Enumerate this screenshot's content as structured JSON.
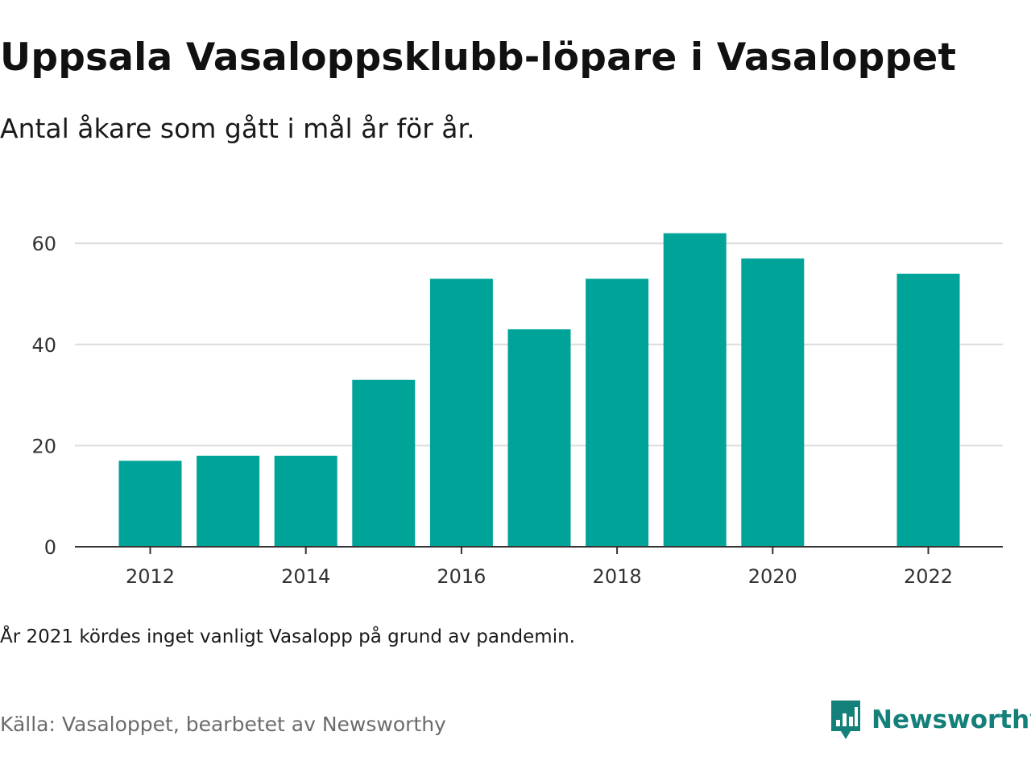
{
  "title": "Uppsala Vasaloppsklubb-löpare i Vasaloppet",
  "subtitle": "Antal åkare som gått i mål år för år.",
  "note": "År 2021 kördes inget vanligt Vasalopp på grund av pandemin.",
  "source": "Källa: Vasaloppet, bearbetet av Newsworthy",
  "brand": {
    "name": "Newsworthy",
    "icon": "newsworthy-logo-icon",
    "color": "#14807a"
  },
  "chart_data": {
    "type": "bar",
    "title": "Uppsala Vasaloppsklubb-löpare i Vasaloppet",
    "subtitle": "Antal åkare som gått i mål år för år.",
    "xlabel": "",
    "ylabel": "",
    "categories": [
      2012,
      2013,
      2014,
      2015,
      2016,
      2017,
      2018,
      2019,
      2020,
      2021,
      2022
    ],
    "values": [
      17,
      18,
      18,
      33,
      53,
      43,
      53,
      62,
      57,
      null,
      54
    ],
    "bar_color": "#00a398",
    "ylim": [
      0,
      68
    ],
    "yticks": [
      0,
      20,
      40,
      60
    ],
    "xticks": [
      2012,
      2014,
      2016,
      2018,
      2020,
      2022
    ],
    "grid": true,
    "legend": "none"
  }
}
